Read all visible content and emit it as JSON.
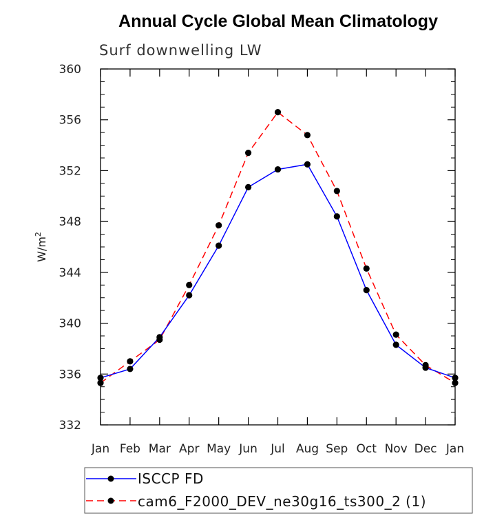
{
  "chart_data": {
    "type": "line",
    "title": "Annual Cycle Global Mean Climatology",
    "subtitle": "Surf downwelling LW",
    "ylabel": "W/m",
    "ylabel_sup": "2",
    "xlabel": "",
    "categories": [
      "Jan",
      "Feb",
      "Mar",
      "Apr",
      "May",
      "Jun",
      "Jul",
      "Aug",
      "Sep",
      "Oct",
      "Nov",
      "Dec",
      "Jan"
    ],
    "ylim": [
      332,
      360
    ],
    "yticks": [
      "332",
      "336",
      "340",
      "344",
      "348",
      "352",
      "356",
      "360"
    ],
    "series": [
      {
        "name": "ISCCP FD",
        "color": "#0000ff",
        "dash": "solid",
        "values": [
          335.7,
          336.4,
          338.9,
          342.2,
          346.1,
          350.7,
          352.1,
          352.5,
          348.4,
          342.6,
          338.3,
          336.5,
          335.7
        ]
      },
      {
        "name": "cam6_F2000_DEV_ne30g16_ts300_2 (1)",
        "color": "#ff0000",
        "dash": "dashed",
        "values": [
          335.3,
          337.0,
          338.7,
          343.0,
          347.7,
          353.4,
          356.6,
          354.8,
          350.4,
          344.3,
          339.1,
          336.7,
          335.3
        ]
      }
    ],
    "marker_color": "#000000",
    "legend_position": "bottom"
  }
}
